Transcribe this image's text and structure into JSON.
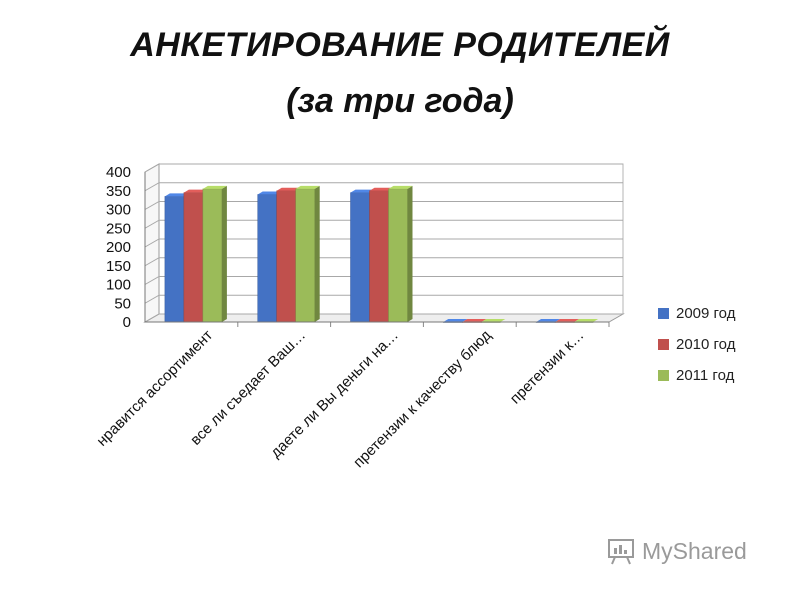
{
  "header": {
    "title_line1": "АНКЕТИРОВАНИЕ РОДИТЕЛЕЙ",
    "title_line2": "(за три года)"
  },
  "chart_data": {
    "type": "bar",
    "categories": [
      "нравится ассортимент",
      "все ли съедает Ваш…",
      "даете ли Вы деньги на…",
      "претензии к качеству блюд",
      "претензии к…"
    ],
    "series": [
      {
        "name": "2009 год",
        "color": "#4472C4",
        "values": [
          335,
          340,
          345,
          0,
          0
        ]
      },
      {
        "name": "2010 год",
        "color": "#C0504D",
        "values": [
          345,
          350,
          350,
          0,
          0
        ]
      },
      {
        "name": "2011 год",
        "color": "#9BBB59",
        "values": [
          355,
          355,
          355,
          0,
          0
        ]
      }
    ],
    "ylim": [
      0,
      400
    ],
    "yticks": [
      "0",
      "50",
      "100",
      "150",
      "200",
      "250",
      "300",
      "350",
      "400"
    ],
    "grid": true,
    "legend_position": "right"
  },
  "watermark": {
    "text": "MyShared"
  }
}
